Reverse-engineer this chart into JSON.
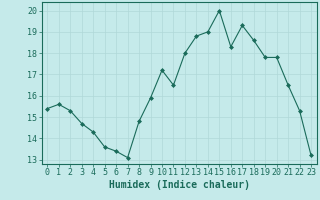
{
  "x": [
    0,
    1,
    2,
    3,
    4,
    5,
    6,
    7,
    8,
    9,
    10,
    11,
    12,
    13,
    14,
    15,
    16,
    17,
    18,
    19,
    20,
    21,
    22,
    23
  ],
  "y": [
    15.4,
    15.6,
    15.3,
    14.7,
    14.3,
    13.6,
    13.4,
    13.1,
    14.8,
    15.9,
    17.2,
    16.5,
    18.0,
    18.8,
    19.0,
    20.0,
    18.3,
    19.3,
    18.6,
    17.8,
    17.8,
    16.5,
    15.3,
    13.2
  ],
  "line_color": "#1a6b5a",
  "marker": "D",
  "marker_size": 2,
  "bg_color": "#c5eaea",
  "grid_color": "#b0d8d8",
  "xlabel": "Humidex (Indice chaleur)",
  "xlim": [
    -0.5,
    23.5
  ],
  "ylim": [
    12.8,
    20.4
  ],
  "yticks": [
    13,
    14,
    15,
    16,
    17,
    18,
    19,
    20
  ],
  "xticks": [
    0,
    1,
    2,
    3,
    4,
    5,
    6,
    7,
    8,
    9,
    10,
    11,
    12,
    13,
    14,
    15,
    16,
    17,
    18,
    19,
    20,
    21,
    22,
    23
  ],
  "tick_color": "#1a6b5a",
  "label_color": "#1a6b5a",
  "font_size": 6,
  "xlabel_fontsize": 7
}
